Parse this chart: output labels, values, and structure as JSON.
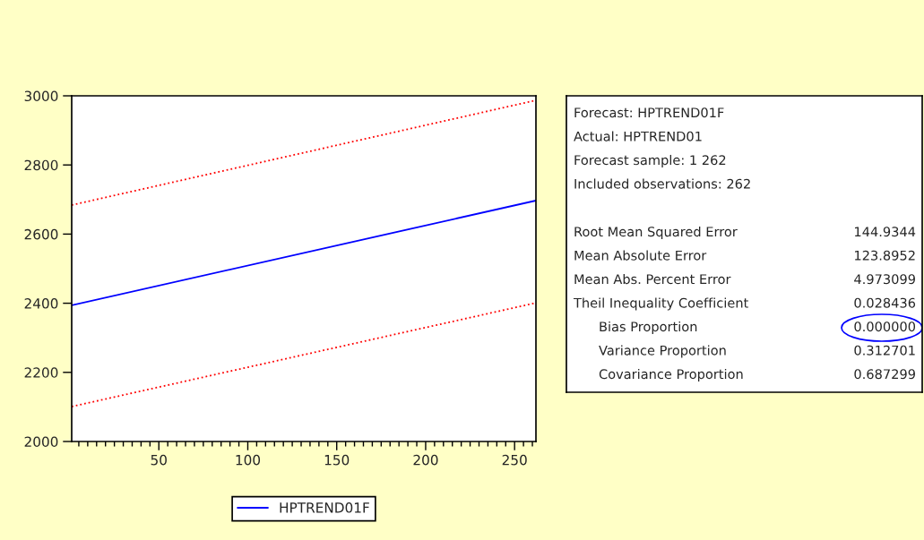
{
  "chart_data": [
    {
      "type": "line",
      "legend": "bottom",
      "grid": false,
      "marker": "none",
      "xlim": [
        1,
        262
      ],
      "x": [
        1,
        262
      ],
      "xticks": [
        {
          "value": 5,
          "label": null
        },
        {
          "value": 10,
          "label": null
        },
        {
          "value": 15,
          "label": null
        },
        {
          "value": 20,
          "label": null
        },
        {
          "value": 25,
          "label": null
        },
        {
          "value": 30,
          "label": null
        },
        {
          "value": 35,
          "label": null
        },
        {
          "value": 40,
          "label": null
        },
        {
          "value": 45,
          "label": null
        },
        50,
        {
          "value": 55,
          "label": null
        },
        {
          "value": 60,
          "label": null
        },
        {
          "value": 65,
          "label": null
        },
        {
          "value": 70,
          "label": null
        },
        {
          "value": 75,
          "label": null
        },
        {
          "value": 80,
          "label": null
        },
        {
          "value": 85,
          "label": null
        },
        {
          "value": 90,
          "label": null
        },
        {
          "value": 95,
          "label": null
        },
        100,
        {
          "value": 105,
          "label": null
        },
        {
          "value": 110,
          "label": null
        },
        {
          "value": 115,
          "label": null
        },
        {
          "value": 120,
          "label": null
        },
        {
          "value": 125,
          "label": null
        },
        {
          "value": 130,
          "label": null
        },
        {
          "value": 135,
          "label": null
        },
        {
          "value": 140,
          "label": null
        },
        {
          "value": 145,
          "label": null
        },
        150,
        {
          "value": 155,
          "label": null
        },
        {
          "value": 160,
          "label": null
        },
        {
          "value": 165,
          "label": null
        },
        {
          "value": 170,
          "label": null
        },
        {
          "value": 175,
          "label": null
        },
        {
          "value": 180,
          "label": null
        },
        {
          "value": 185,
          "label": null
        },
        {
          "value": 190,
          "label": null
        },
        {
          "value": 195,
          "label": null
        },
        200,
        {
          "value": 205,
          "label": null
        },
        {
          "value": 210,
          "label": null
        },
        {
          "value": 215,
          "label": null
        },
        {
          "value": 220,
          "label": null
        },
        {
          "value": 225,
          "label": null
        },
        {
          "value": 230,
          "label": null
        },
        {
          "value": 235,
          "label": null
        },
        {
          "value": 240,
          "label": null
        },
        {
          "value": 245,
          "label": null
        },
        250,
        {
          "value": 255,
          "label": null
        },
        {
          "value": 260,
          "label": null
        }
      ],
      "ylim": [
        2000,
        3000
      ],
      "yticks": [
        2000,
        2200,
        2400,
        2600,
        2800,
        3000
      ],
      "series": [
        {
          "name": "HPTREND01F",
          "color": "#0000ff",
          "line_style": "solid",
          "values": [
            2394,
            2697
          ]
        },
        {
          "color": "#ff0000",
          "line_style": "dotted",
          "values": [
            2684,
            2987
          ]
        },
        {
          "color": "#ff0000",
          "line_style": "dotted",
          "values": [
            2101,
            2401
          ]
        }
      ]
    },
    {
      "type": "other",
      "annotations": [
        "Forecast: HPTREND01F",
        "Actual: HPTREND01",
        "Forecast sample: 1 262",
        "Included observations: 262"
      ],
      "categories": [
        "Root Mean Squared Error",
        "Mean Absolute Error",
        "Mean Abs. Percent Error",
        "Theil Inequality Coefficient",
        "Bias Proportion",
        "Variance Proportion",
        "Covariance Proportion"
      ],
      "value_labels": [
        "144.9344",
        "123.8952",
        "4.973099",
        "0.028436",
        "0.000000",
        "0.312701",
        "0.687299"
      ]
    }
  ]
}
